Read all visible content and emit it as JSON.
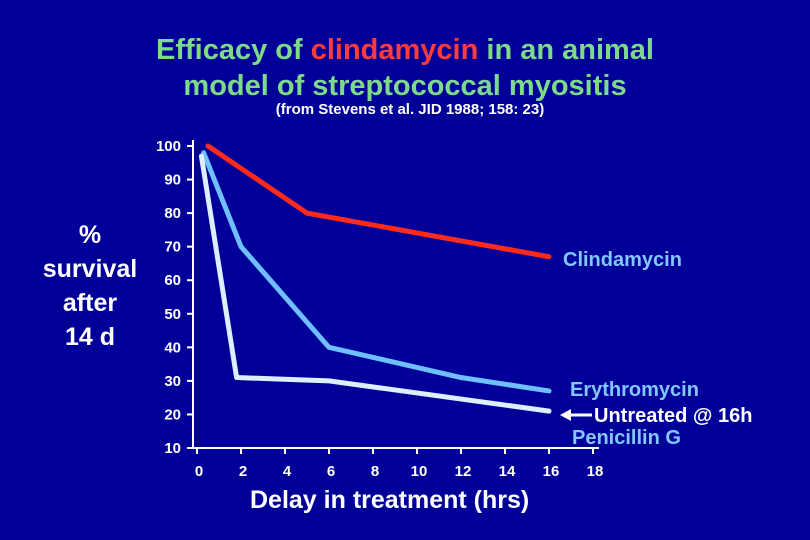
{
  "title": {
    "line1_pre": "Efficacy of ",
    "line1_hl": "clindamycin",
    "line1_post": " in an animal",
    "line2": "model of streptococcal  myositis"
  },
  "subtitle": "(from Stevens et al. JID 1988; 158: 23)",
  "colors": {
    "background": "#000099",
    "clindamycin": "#ff2a1a",
    "erythromycin": "#6fbfff",
    "penicillin": "#ddeeff",
    "title": "#7fd98a",
    "title_highlight": "#ff3b3b",
    "label_blue": "#80c8ff"
  },
  "chart_data": {
    "type": "line",
    "ylabel_lines": [
      "%",
      "survival",
      "after",
      "14 d"
    ],
    "xlabel": "Delay in treatment (hrs)",
    "x_ticks": [
      "0",
      "2",
      "4",
      "6",
      "8",
      "10",
      "12",
      "14",
      "16",
      "18"
    ],
    "y_ticks": [
      "10",
      "20",
      "30",
      "40",
      "50",
      "60",
      "70",
      "80",
      "90",
      "100"
    ],
    "xlim": [
      0,
      18
    ],
    "ylim": [
      10,
      100
    ],
    "series": [
      {
        "name": "Clindamycin",
        "color": "#ff2a1a",
        "x": [
          0.5,
          5,
          16
        ],
        "y": [
          100,
          80,
          67
        ]
      },
      {
        "name": "Erythromycin",
        "color": "#6fbfff",
        "x": [
          0.3,
          2,
          6,
          12,
          16
        ],
        "y": [
          98,
          70,
          40,
          31,
          27
        ]
      },
      {
        "name": "Penicillin G",
        "color": "#ddeeff",
        "x": [
          0.2,
          1.8,
          6,
          16
        ],
        "y": [
          97,
          31,
          30,
          21
        ]
      }
    ],
    "annotation": "Untreated @ 16h"
  }
}
